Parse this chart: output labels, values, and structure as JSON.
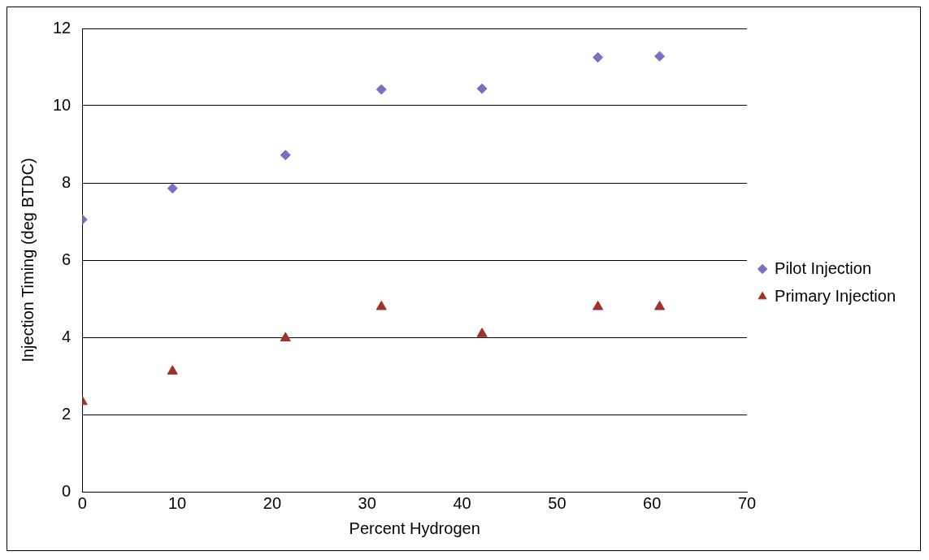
{
  "chart_data": {
    "type": "scatter",
    "xlabel": "Percent Hydrogen",
    "ylabel": "Injection Timing (deg BTDC)",
    "xlim": [
      0,
      70
    ],
    "xticks": [
      0,
      10,
      20,
      30,
      40,
      50,
      60,
      70
    ],
    "ylim": [
      0,
      12
    ],
    "yticks": [
      0,
      2,
      4,
      6,
      8,
      10,
      12
    ],
    "grid": "y",
    "legend": "right",
    "series": [
      {
        "name": "Pilot Injection",
        "color": "#7b6fbf",
        "marker": "diamond",
        "x": [
          0,
          9.5,
          21.4,
          31.5,
          42.1,
          54.3,
          60.8
        ],
        "values": [
          7.05,
          7.86,
          8.72,
          10.42,
          10.44,
          11.25,
          11.28
        ]
      },
      {
        "name": "Primary Injection",
        "color": "#a0302a",
        "marker": "triangle",
        "x": [
          0,
          9.5,
          21.4,
          31.5,
          42.1,
          54.3,
          60.8
        ],
        "values": [
          2.33,
          3.12,
          3.98,
          4.79,
          4.09,
          4.79,
          4.79
        ]
      }
    ]
  }
}
